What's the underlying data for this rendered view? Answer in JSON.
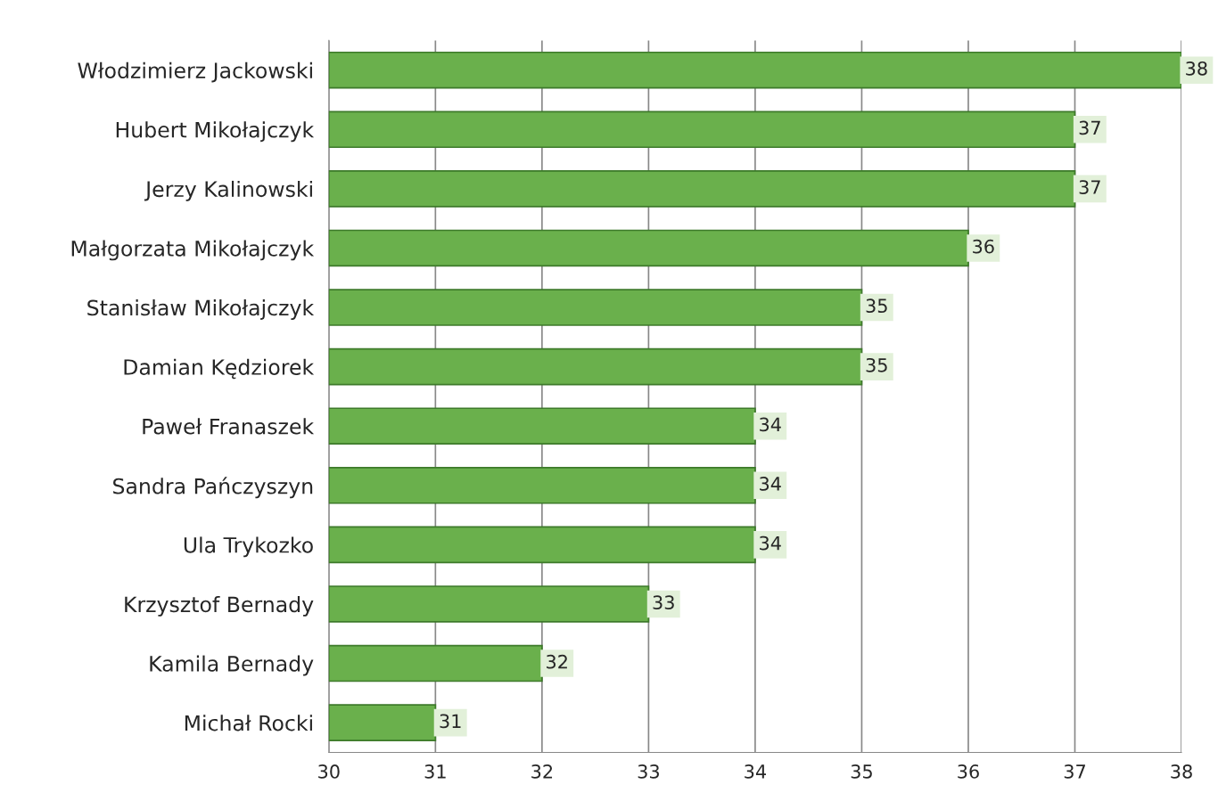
{
  "chart_data": {
    "type": "bar",
    "orientation": "horizontal",
    "categories": [
      "Włodzimierz Jackowski",
      "Hubert Mikołajczyk",
      "Jerzy Kalinowski",
      "Małgorzata Mikołajczyk",
      "Stanisław Mikołajczyk",
      "Damian Kędziorek",
      "Paweł Franaszek",
      "Sandra Pańczyszyn",
      "Ula Trykozko",
      "Krzysztof Bernady",
      "Kamila Bernady",
      "Michał Rocki"
    ],
    "values": [
      38,
      37,
      37,
      36,
      35,
      35,
      34,
      34,
      34,
      33,
      32,
      31
    ],
    "color": "#6ab04c",
    "xlim": [
      30,
      38
    ],
    "xticks": [
      30,
      31,
      32,
      33,
      34,
      35,
      36,
      37,
      38
    ],
    "grid": "x",
    "data_labels": true
  }
}
